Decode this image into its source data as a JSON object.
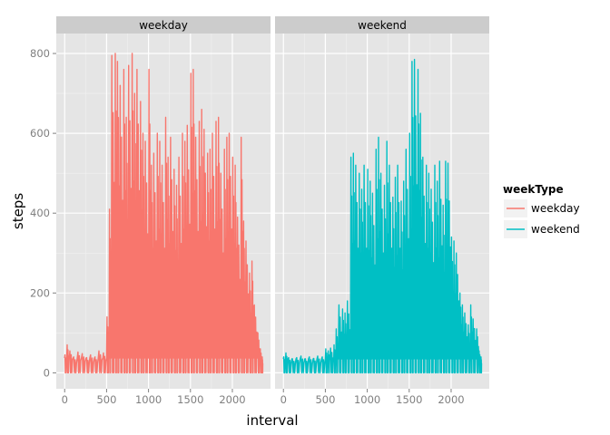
{
  "chart_data": {
    "type": "line",
    "xlabel": "interval",
    "ylabel": "steps",
    "legend": {
      "title": "weekType",
      "placement": "right",
      "entries": [
        {
          "label": "weekday",
          "color": "#F8766D"
        },
        {
          "label": "weekend",
          "color": "#00BFC4"
        }
      ]
    },
    "xlim": [
      -100,
      2455
    ],
    "ylim": [
      -40,
      850
    ],
    "x_ticks": [
      0,
      500,
      1000,
      1500,
      2000
    ],
    "y_ticks": [
      0,
      200,
      400,
      600,
      800
    ],
    "grid": true,
    "facets": [
      {
        "strip": "weekday",
        "series": "weekday",
        "color": "#F8766D",
        "x": [
          0,
          25,
          55,
          100,
          150,
          200,
          255,
          300,
          355,
          400,
          455,
          500,
          530,
          555,
          600,
          625,
          655,
          700,
          730,
          755,
          800,
          830,
          855,
          900,
          930,
          955,
          1000,
          1030,
          1055,
          1100,
          1130,
          1155,
          1200,
          1230,
          1255,
          1300,
          1330,
          1355,
          1400,
          1430,
          1455,
          1500,
          1530,
          1555,
          1600,
          1630,
          1655,
          1700,
          1730,
          1755,
          1800,
          1830,
          1855,
          1900,
          1930,
          1955,
          2000,
          2030,
          2055,
          2100,
          2130,
          2155,
          2200,
          2230,
          2255,
          2300,
          2330,
          2355
        ],
        "peak": [
          45,
          70,
          55,
          40,
          52,
          48,
          38,
          45,
          40,
          55,
          50,
          140,
          410,
          795,
          800,
          780,
          720,
          760,
          640,
          770,
          800,
          700,
          760,
          680,
          600,
          580,
          760,
          520,
          550,
          600,
          580,
          520,
          640,
          540,
          590,
          510,
          470,
          540,
          600,
          580,
          620,
          750,
          760,
          590,
          630,
          660,
          610,
          550,
          560,
          600,
          630,
          640,
          500,
          560,
          590,
          600,
          540,
          520,
          390,
          590,
          380,
          330,
          250,
          280,
          170,
          100,
          60,
          40
        ],
        "baseline": 37
      },
      {
        "strip": "weekend",
        "series": "weekend",
        "color": "#00BFC4",
        "x": [
          0,
          25,
          55,
          100,
          150,
          200,
          255,
          300,
          355,
          400,
          455,
          500,
          530,
          555,
          600,
          625,
          655,
          700,
          730,
          755,
          800,
          830,
          855,
          900,
          930,
          955,
          1000,
          1030,
          1055,
          1100,
          1130,
          1155,
          1200,
          1230,
          1255,
          1300,
          1330,
          1355,
          1400,
          1430,
          1455,
          1500,
          1530,
          1555,
          1600,
          1630,
          1655,
          1700,
          1730,
          1755,
          1800,
          1830,
          1855,
          1900,
          1930,
          1955,
          2000,
          2030,
          2055,
          2100,
          2130,
          2155,
          2200,
          2230,
          2255,
          2300,
          2330,
          2355
        ],
        "peak": [
          40,
          50,
          38,
          35,
          38,
          42,
          35,
          40,
          36,
          42,
          40,
          60,
          55,
          62,
          70,
          110,
          170,
          160,
          150,
          180,
          540,
          550,
          520,
          500,
          460,
          520,
          510,
          480,
          450,
          560,
          590,
          500,
          470,
          580,
          520,
          440,
          490,
          520,
          430,
          480,
          560,
          600,
          780,
          785,
          760,
          650,
          540,
          520,
          500,
          460,
          520,
          480,
          530,
          420,
          530,
          525,
          340,
          330,
          300,
          200,
          170,
          150,
          120,
          170,
          135,
          110,
          55,
          40
        ],
        "baseline": 35
      }
    ]
  }
}
